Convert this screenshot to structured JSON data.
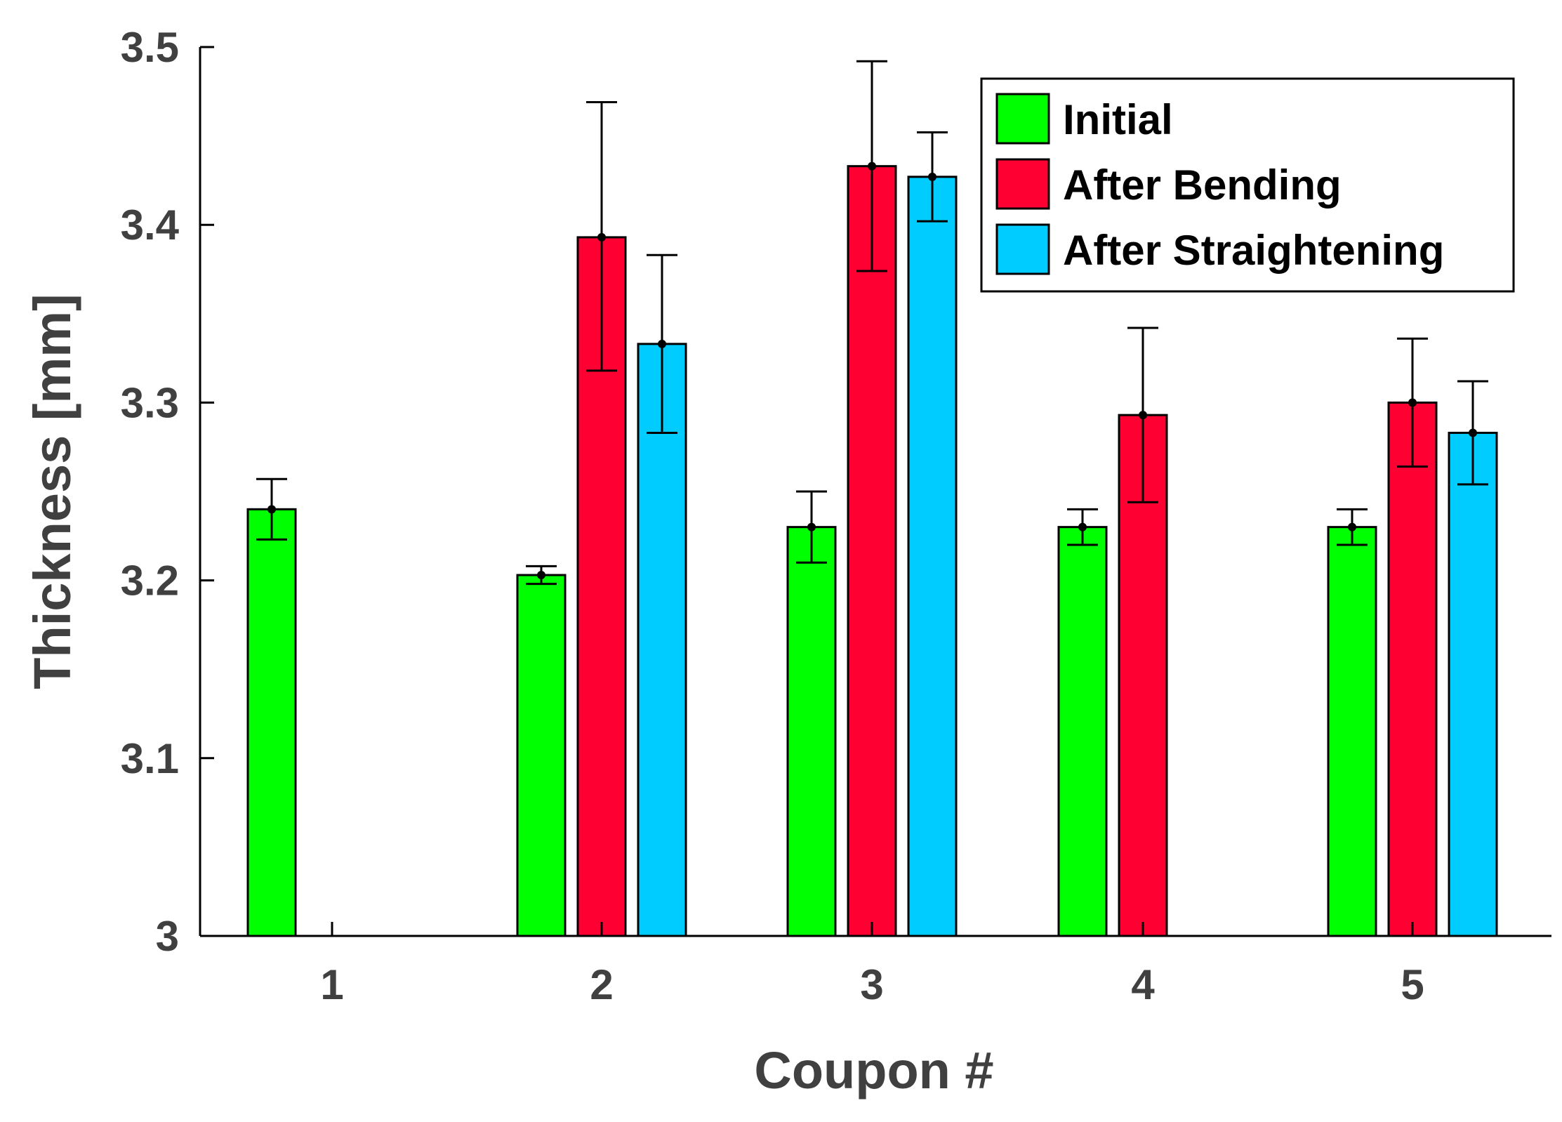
{
  "chart_data": {
    "type": "bar",
    "xlabel": "Coupon #",
    "ylabel": "Thickness [mm]",
    "ylim": [
      3.0,
      3.5
    ],
    "yticks": [
      3,
      3.1,
      3.2,
      3.3,
      3.4,
      3.5
    ],
    "ytick_labels": [
      "3",
      "3.1",
      "3.2",
      "3.3",
      "3.4",
      "3.5"
    ],
    "categories": [
      "1",
      "2",
      "3",
      "4",
      "5"
    ],
    "grid": false,
    "legend_position": "top-right",
    "series": [
      {
        "name": "Initial",
        "color": "#00ff00",
        "values": [
          3.24,
          3.203,
          3.23,
          3.23,
          3.23
        ],
        "err_low": [
          3.223,
          3.198,
          3.21,
          3.22,
          3.22
        ],
        "err_high": [
          3.257,
          3.208,
          3.25,
          3.24,
          3.24
        ]
      },
      {
        "name": "After Bending",
        "color": "#ff0033",
        "values": [
          null,
          3.393,
          3.433,
          3.293,
          3.3
        ],
        "err_low": [
          null,
          3.318,
          3.374,
          3.244,
          3.264
        ],
        "err_high": [
          null,
          3.469,
          3.492,
          3.342,
          3.336
        ]
      },
      {
        "name": "After Straightening",
        "color": "#00ccff",
        "values": [
          null,
          3.333,
          3.427,
          null,
          3.283
        ],
        "err_low": [
          null,
          3.283,
          3.402,
          null,
          3.254
        ],
        "err_high": [
          null,
          3.383,
          3.452,
          null,
          3.312
        ]
      }
    ]
  }
}
